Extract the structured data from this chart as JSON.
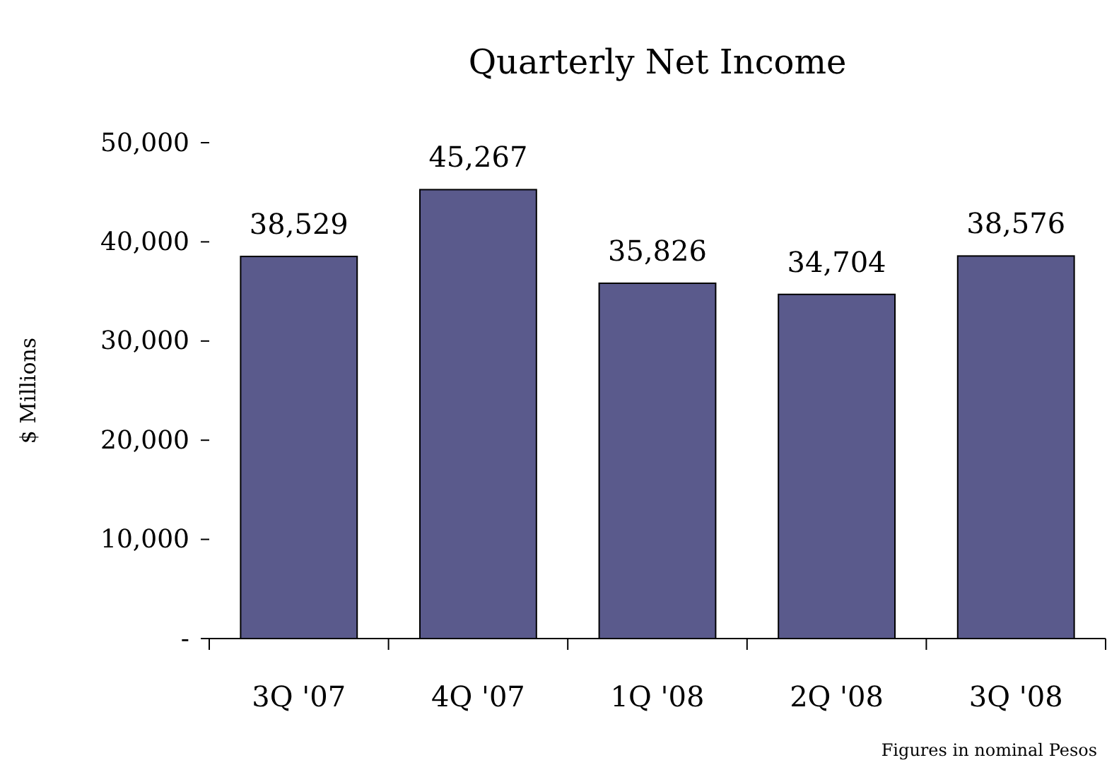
{
  "chart_data": {
    "type": "bar",
    "title": "Quarterly Net Income",
    "ylabel": "$ Millions",
    "categories": [
      "3Q '07",
      "4Q '07",
      "1Q '08",
      "2Q '08",
      "3Q '08"
    ],
    "values": [
      38529,
      45267,
      35826,
      34704,
      38576
    ],
    "color": "#5a5a8c",
    "ylim": [
      0,
      50000
    ],
    "yticks": [
      {
        "value": 0,
        "label": "-"
      },
      {
        "value": 10000,
        "label": "10,000"
      },
      {
        "value": 20000,
        "label": "20,000"
      },
      {
        "value": 30000,
        "label": "30,000"
      },
      {
        "value": 40000,
        "label": "40,000"
      },
      {
        "value": 50000,
        "label": "50,000"
      }
    ],
    "value_labels": [
      "38,529",
      "45,267",
      "35,826",
      "34,704",
      "38,576"
    ],
    "grid": false,
    "annotations": [
      "Figures in nominal Pesos"
    ]
  }
}
